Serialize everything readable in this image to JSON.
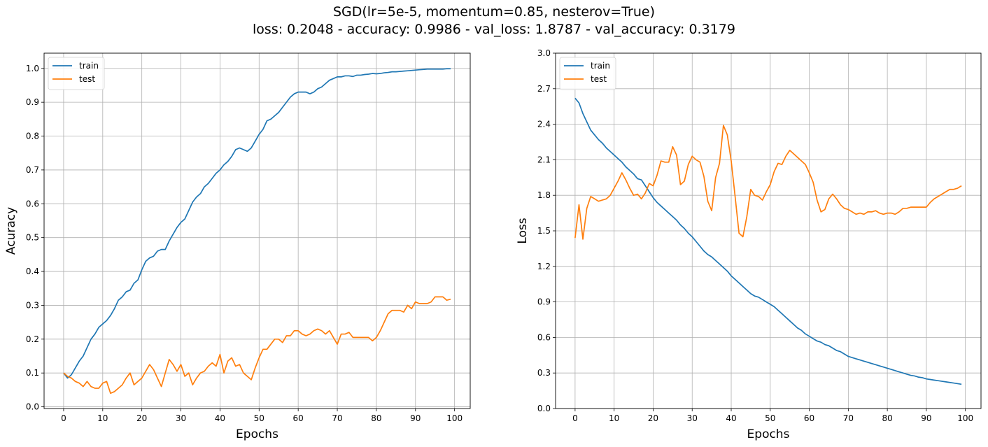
{
  "figure": {
    "title_line1": "SGD(lr=5e-5, momentum=0.85, nesterov=True)",
    "title_line2": "loss: 0.2048 - accuracy: 0.9986 - val_loss: 1.8787 - val_accuracy: 0.3179"
  },
  "colors": {
    "train": "#1f77b4",
    "test": "#ff7f0e",
    "grid": "#b0b0b0"
  },
  "chart_data": [
    {
      "type": "line",
      "xlabel": "Epochs",
      "ylabel": "Acuracy",
      "xlim": [
        -5,
        104
      ],
      "ylim": [
        -0.005,
        1.045
      ],
      "xticks": [
        0,
        10,
        20,
        30,
        40,
        50,
        60,
        70,
        80,
        90,
        100
      ],
      "xtick_labels": [
        "0",
        "10",
        "20",
        "30",
        "40",
        "50",
        "60",
        "70",
        "80",
        "90",
        "100"
      ],
      "yticks": [
        0.0,
        0.1,
        0.2,
        0.3,
        0.4,
        0.5,
        0.6,
        0.7,
        0.8,
        0.9,
        1.0
      ],
      "ytick_labels": [
        "0.0",
        "0.1",
        "0.2",
        "0.3",
        "0.4",
        "0.5",
        "0.6",
        "0.7",
        "0.8",
        "0.9",
        "1.0"
      ],
      "grid": true,
      "legend": "upper left",
      "series": [
        {
          "name": "train",
          "color": "#1f77b4",
          "values": [
            0.1,
            0.085,
            0.095,
            0.115,
            0.135,
            0.15,
            0.175,
            0.2,
            0.215,
            0.235,
            0.245,
            0.255,
            0.27,
            0.29,
            0.315,
            0.325,
            0.34,
            0.345,
            0.365,
            0.375,
            0.405,
            0.43,
            0.44,
            0.445,
            0.46,
            0.465,
            0.465,
            0.49,
            0.51,
            0.53,
            0.545,
            0.555,
            0.58,
            0.605,
            0.62,
            0.63,
            0.65,
            0.66,
            0.675,
            0.69,
            0.7,
            0.715,
            0.725,
            0.74,
            0.76,
            0.765,
            0.76,
            0.755,
            0.765,
            0.785,
            0.805,
            0.82,
            0.845,
            0.85,
            0.86,
            0.87,
            0.885,
            0.9,
            0.915,
            0.925,
            0.93,
            0.93,
            0.93,
            0.925,
            0.93,
            0.94,
            0.945,
            0.955,
            0.965,
            0.97,
            0.975,
            0.975,
            0.978,
            0.978,
            0.976,
            0.98,
            0.98,
            0.982,
            0.983,
            0.985,
            0.984,
            0.985,
            0.987,
            0.988,
            0.99,
            0.99,
            0.991,
            0.992,
            0.993,
            0.994,
            0.995,
            0.996,
            0.997,
            0.998,
            0.998,
            0.998,
            0.998,
            0.998,
            0.999,
            0.999
          ]
        },
        {
          "name": "test",
          "color": "#ff7f0e",
          "values": [
            0.1,
            0.09,
            0.085,
            0.075,
            0.07,
            0.06,
            0.075,
            0.06,
            0.055,
            0.055,
            0.07,
            0.075,
            0.04,
            0.045,
            0.055,
            0.065,
            0.085,
            0.1,
            0.065,
            0.075,
            0.085,
            0.105,
            0.125,
            0.11,
            0.085,
            0.06,
            0.1,
            0.14,
            0.125,
            0.105,
            0.125,
            0.09,
            0.1,
            0.065,
            0.085,
            0.1,
            0.105,
            0.12,
            0.13,
            0.12,
            0.155,
            0.1,
            0.135,
            0.145,
            0.12,
            0.125,
            0.1,
            0.09,
            0.08,
            0.115,
            0.145,
            0.17,
            0.17,
            0.185,
            0.2,
            0.2,
            0.19,
            0.21,
            0.21,
            0.225,
            0.225,
            0.215,
            0.21,
            0.215,
            0.225,
            0.23,
            0.225,
            0.215,
            0.225,
            0.205,
            0.185,
            0.215,
            0.215,
            0.22,
            0.205,
            0.205,
            0.205,
            0.205,
            0.205,
            0.195,
            0.205,
            0.225,
            0.25,
            0.275,
            0.285,
            0.285,
            0.285,
            0.28,
            0.3,
            0.29,
            0.31,
            0.305,
            0.305,
            0.305,
            0.31,
            0.325,
            0.325,
            0.325,
            0.315,
            0.318
          ]
        }
      ]
    },
    {
      "type": "line",
      "xlabel": "Epochs",
      "ylabel": "Loss",
      "xlim": [
        -5,
        104
      ],
      "ylim": [
        0.0,
        3.0
      ],
      "xticks": [
        0,
        10,
        20,
        30,
        40,
        50,
        60,
        70,
        80,
        90,
        100
      ],
      "xtick_labels": [
        "0",
        "10",
        "20",
        "30",
        "40",
        "50",
        "60",
        "70",
        "80",
        "90",
        "100"
      ],
      "yticks": [
        0.0,
        0.3,
        0.6,
        0.9,
        1.2,
        1.5,
        1.8,
        2.1,
        2.4,
        2.7,
        3.0
      ],
      "ytick_labels": [
        "0.0",
        "0.3",
        "0.6",
        "0.9",
        "1.2",
        "1.5",
        "1.8",
        "2.1",
        "2.4",
        "2.7",
        "3.0"
      ],
      "grid": true,
      "legend": "upper left",
      "series": [
        {
          "name": "train",
          "color": "#1f77b4",
          "values": [
            2.62,
            2.58,
            2.49,
            2.42,
            2.35,
            2.31,
            2.27,
            2.24,
            2.2,
            2.17,
            2.14,
            2.11,
            2.08,
            2.04,
            2.01,
            1.98,
            1.94,
            1.93,
            1.88,
            1.83,
            1.78,
            1.74,
            1.71,
            1.68,
            1.65,
            1.62,
            1.59,
            1.55,
            1.52,
            1.48,
            1.45,
            1.41,
            1.37,
            1.33,
            1.3,
            1.28,
            1.25,
            1.22,
            1.19,
            1.16,
            1.12,
            1.09,
            1.06,
            1.03,
            1.0,
            0.97,
            0.95,
            0.94,
            0.92,
            0.9,
            0.88,
            0.86,
            0.83,
            0.8,
            0.77,
            0.74,
            0.71,
            0.68,
            0.66,
            0.63,
            0.61,
            0.59,
            0.57,
            0.56,
            0.54,
            0.53,
            0.51,
            0.49,
            0.48,
            0.46,
            0.44,
            0.43,
            0.42,
            0.41,
            0.4,
            0.39,
            0.38,
            0.37,
            0.36,
            0.35,
            0.34,
            0.33,
            0.32,
            0.31,
            0.3,
            0.29,
            0.28,
            0.275,
            0.265,
            0.26,
            0.25,
            0.245,
            0.24,
            0.235,
            0.23,
            0.225,
            0.22,
            0.215,
            0.21,
            0.205
          ]
        },
        {
          "name": "test",
          "color": "#ff7f0e",
          "values": [
            1.44,
            1.72,
            1.43,
            1.69,
            1.79,
            1.77,
            1.75,
            1.76,
            1.77,
            1.8,
            1.86,
            1.92,
            1.99,
            1.93,
            1.86,
            1.8,
            1.81,
            1.77,
            1.82,
            1.9,
            1.88,
            1.97,
            2.09,
            2.08,
            2.08,
            2.21,
            2.14,
            1.89,
            1.92,
            2.06,
            2.13,
            2.1,
            2.08,
            1.96,
            1.75,
            1.67,
            1.95,
            2.07,
            2.39,
            2.31,
            2.09,
            1.79,
            1.48,
            1.45,
            1.62,
            1.85,
            1.8,
            1.79,
            1.76,
            1.83,
            1.89,
            2.0,
            2.07,
            2.06,
            2.13,
            2.18,
            2.15,
            2.12,
            2.09,
            2.06,
            1.99,
            1.91,
            1.76,
            1.66,
            1.68,
            1.77,
            1.81,
            1.77,
            1.72,
            1.69,
            1.68,
            1.66,
            1.64,
            1.65,
            1.64,
            1.66,
            1.66,
            1.67,
            1.65,
            1.64,
            1.65,
            1.65,
            1.64,
            1.66,
            1.69,
            1.69,
            1.7,
            1.7,
            1.7,
            1.7,
            1.7,
            1.74,
            1.77,
            1.79,
            1.81,
            1.83,
            1.85,
            1.85,
            1.86,
            1.88
          ]
        }
      ]
    }
  ]
}
